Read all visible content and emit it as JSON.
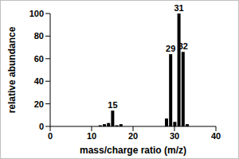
{
  "chart_data": {
    "type": "bar",
    "x_label": "mass/charge ratio (m/z)",
    "y_label": "relative abundance",
    "x": [
      12,
      13,
      14,
      15,
      16,
      17,
      28,
      29,
      30,
      31,
      32,
      33
    ],
    "values": [
      1,
      2,
      3,
      14,
      1,
      2,
      7,
      64,
      4,
      100,
      66,
      2
    ],
    "color": "#000000",
    "xlim": [
      0,
      40
    ],
    "xticks": [
      0,
      10,
      20,
      30,
      40
    ],
    "ylim": [
      0,
      100
    ],
    "yticks": [
      0,
      20,
      40,
      60,
      80,
      100
    ],
    "grid": false,
    "annotations": [
      {
        "x": 15,
        "text": "15"
      },
      {
        "x": 29,
        "text": "29"
      },
      {
        "x": 31,
        "text": "31"
      },
      {
        "x": 32,
        "text": "32"
      }
    ]
  }
}
